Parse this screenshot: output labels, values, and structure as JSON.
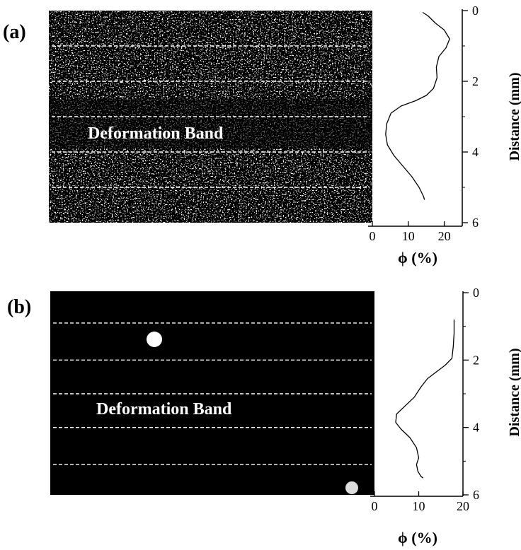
{
  "figure": {
    "panels": [
      {
        "label": "(a)",
        "band_label": "Deformation Band",
        "image_style": "binary-dense",
        "xlabel": "ϕ (%)",
        "ylabel": "Distance (mm)",
        "x_ticks": [
          "0",
          "10",
          "20"
        ],
        "y_ticks": [
          "0",
          "2",
          "4",
          "6"
        ]
      },
      {
        "label": "(b)",
        "band_label": "Deformation Band",
        "image_style": "sparse",
        "xlabel": "ϕ (%)",
        "ylabel": "Distance (mm)",
        "x_ticks": [
          "0",
          "10",
          "20"
        ],
        "y_ticks": [
          "0",
          "2",
          "4",
          "6"
        ]
      }
    ]
  },
  "chart_data": [
    {
      "type": "line",
      "title": "",
      "xlabel": "ϕ (%)",
      "ylabel": "Distance (mm)",
      "xlim": [
        0,
        25
      ],
      "ylim": [
        0,
        6
      ],
      "y_inverted": true,
      "grid": false,
      "dashed_reference_lines_mm": [
        1,
        2,
        3,
        4,
        5
      ],
      "series": [
        {
          "x": [
            14,
            15.5,
            17.5,
            20,
            21.5,
            20.5,
            18.5,
            17.8,
            18,
            17,
            15,
            12,
            8,
            5.2,
            4,
            3.7,
            4.2,
            6,
            8.5,
            11,
            13,
            14.2,
            14.5
          ],
          "y": [
            0.05,
            0.15,
            0.35,
            0.55,
            0.8,
            1.05,
            1.3,
            1.6,
            1.9,
            2.2,
            2.4,
            2.55,
            2.7,
            2.9,
            3.2,
            3.5,
            3.8,
            4.1,
            4.4,
            4.7,
            5.0,
            5.25,
            5.35
          ]
        }
      ]
    },
    {
      "type": "line",
      "title": "",
      "xlabel": "ϕ (%)",
      "ylabel": "Distance (mm)",
      "xlim": [
        0,
        20
      ],
      "ylim": [
        0,
        6
      ],
      "y_inverted": true,
      "grid": false,
      "dashed_reference_lines_mm": [
        0.9,
        2.0,
        3.0,
        4.0,
        5.1
      ],
      "series": [
        {
          "x": [
            18,
            18,
            17.8,
            17.5,
            16,
            14,
            12,
            10.5,
            9,
            7,
            5,
            4.8,
            6,
            8,
            9.5,
            10,
            9.5,
            9.8,
            10.5,
            11
          ],
          "y": [
            0.8,
            1.2,
            1.6,
            1.95,
            2.15,
            2.35,
            2.55,
            2.8,
            3.1,
            3.35,
            3.6,
            3.85,
            4.05,
            4.3,
            4.6,
            4.9,
            5.1,
            5.3,
            5.45,
            5.5
          ]
        }
      ]
    }
  ]
}
